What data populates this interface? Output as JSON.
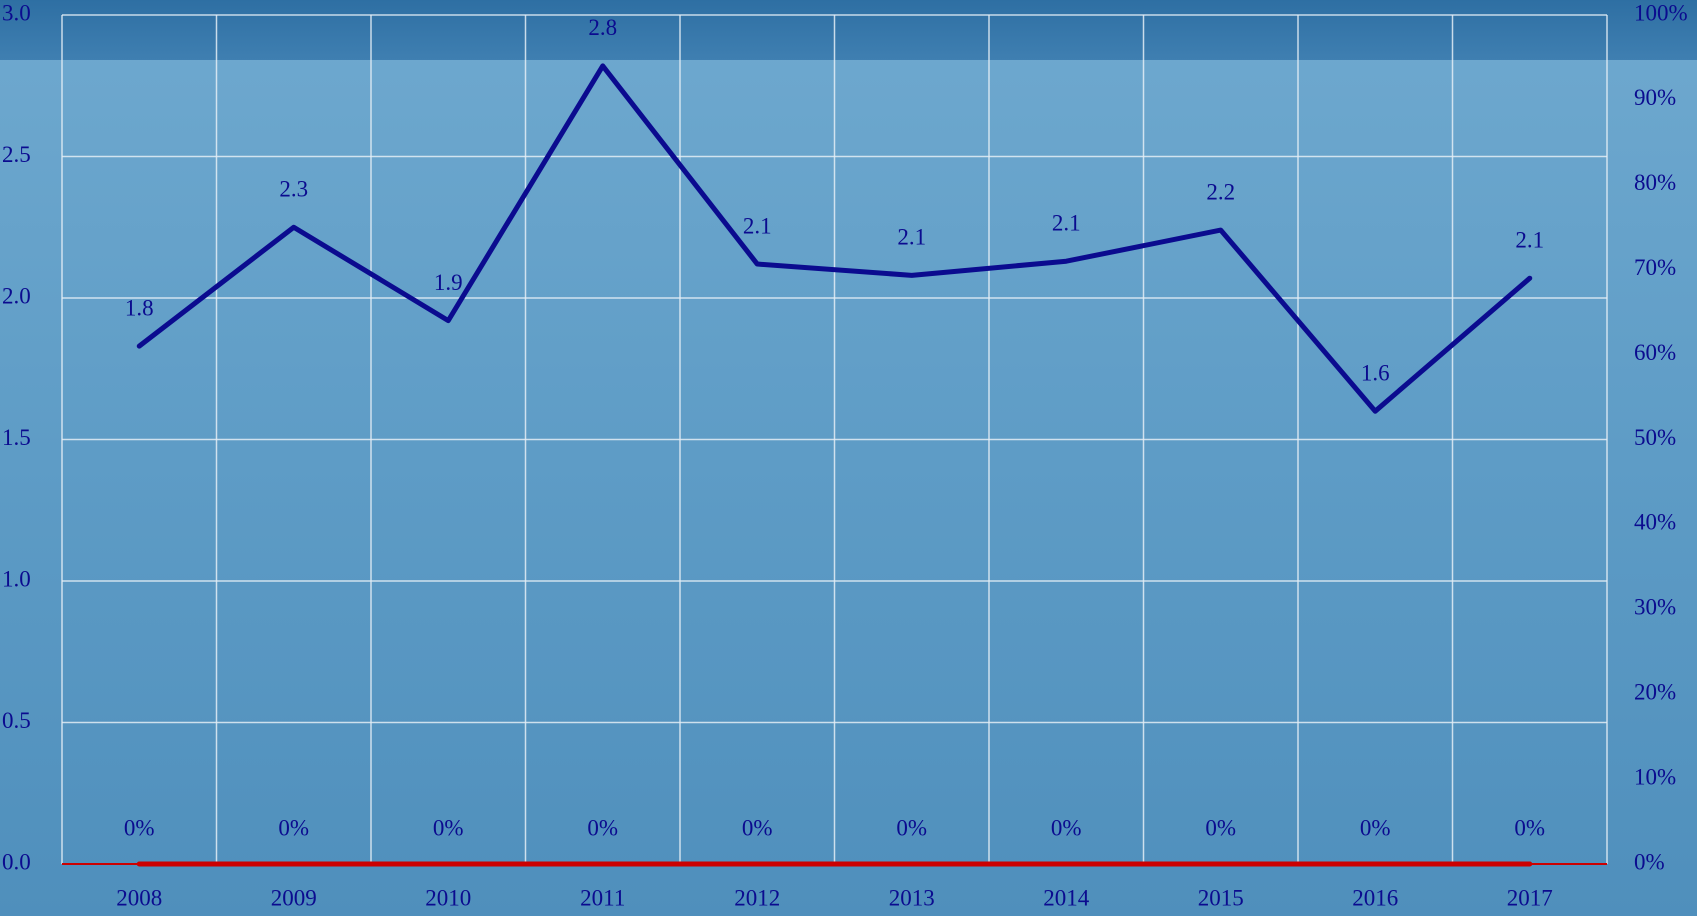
{
  "chart_data": {
    "type": "line",
    "categories": [
      "2008",
      "2009",
      "2010",
      "2011",
      "2012",
      "2013",
      "2014",
      "2015",
      "2016",
      "2017"
    ],
    "series": [
      {
        "color": "#0b0b8f",
        "values": [
          1.83,
          2.25,
          1.92,
          2.82,
          2.12,
          2.08,
          2.13,
          2.24,
          1.6,
          2.07
        ],
        "value_labels": [
          "1.8",
          "2.3",
          "1.9",
          "2.8",
          "2.1",
          "2.1",
          "2.1",
          "2.2",
          "1.6",
          "2.1"
        ]
      },
      {
        "color": "#cc0000",
        "axis": "y2",
        "values": [
          0,
          0,
          0,
          0,
          0,
          0,
          0,
          0,
          0,
          0
        ],
        "value_labels": [
          "0%",
          "0%",
          "0%",
          "0%",
          "0%",
          "0%",
          "0%",
          "0%",
          "0%",
          "0%"
        ]
      }
    ],
    "ylim": [
      0,
      3
    ],
    "yticks": [
      {
        "value": 0,
        "label": "0.0"
      },
      0.5,
      {
        "value": 1,
        "label": "1.0"
      },
      1.5,
      {
        "value": 2,
        "label": "2.0"
      },
      2.5,
      {
        "value": 3,
        "label": "3.0"
      }
    ],
    "y2lim": [
      0,
      100
    ],
    "y2ticks": [
      {
        "value": 0,
        "label": "0%"
      },
      {
        "value": 10,
        "label": "10%"
      },
      {
        "value": 20,
        "label": "20%"
      },
      {
        "value": 30,
        "label": "30%"
      },
      {
        "value": 40,
        "label": "40%"
      },
      {
        "value": 50,
        "label": "50%"
      },
      {
        "value": 60,
        "label": "60%"
      },
      {
        "value": 70,
        "label": "70%"
      },
      {
        "value": 80,
        "label": "80%"
      },
      {
        "value": 90,
        "label": "90%"
      },
      {
        "value": 100,
        "label": "100%"
      }
    ],
    "grid": true
  }
}
